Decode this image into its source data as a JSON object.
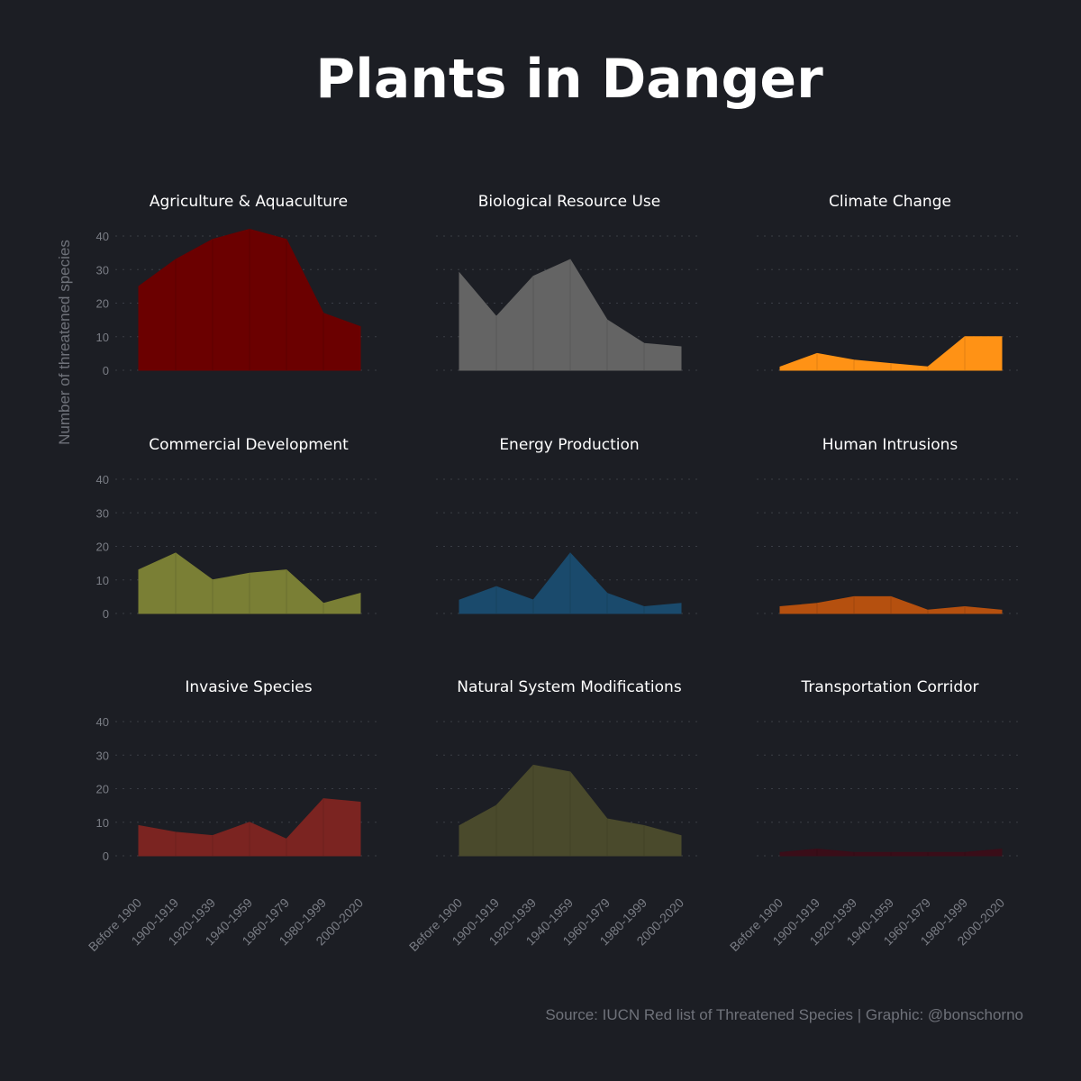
{
  "title": "Plants in Danger",
  "source": "Source: IUCN Red list of Threatened Species | Graphic: @bonschorno",
  "chart_data": {
    "type": "area",
    "ylabel": "Number of threatened species",
    "ylim": [
      0,
      40
    ],
    "yticks": [
      0,
      10,
      20,
      30,
      40
    ],
    "grid": true,
    "categories": [
      "Before 1900",
      "1900-1919",
      "1920-1939",
      "1940-1959",
      "1960-1979",
      "1980-1999",
      "2000-2020"
    ],
    "panels": [
      {
        "name": "Agriculture & Aquaculture",
        "color": "#6b0000",
        "values": [
          25,
          33,
          39,
          42,
          39,
          17,
          13
        ]
      },
      {
        "name": "Biological Resource Use",
        "color": "#646464",
        "values": [
          29,
          16,
          28,
          33,
          15,
          8,
          7
        ]
      },
      {
        "name": "Climate Change",
        "color": "#ff9215",
        "values": [
          1,
          5,
          3,
          2,
          1,
          10,
          10
        ]
      },
      {
        "name": "Commercial Development",
        "color": "#7a7f35",
        "values": [
          13,
          18,
          10,
          12,
          13,
          3,
          6
        ]
      },
      {
        "name": "Energy Production",
        "color": "#1a4a6c",
        "values": [
          4,
          8,
          4,
          18,
          6,
          2,
          3
        ]
      },
      {
        "name": "Human Intrusions",
        "color": "#b5500f",
        "values": [
          2,
          3,
          5,
          5,
          1,
          2,
          1
        ]
      },
      {
        "name": "Invasive Species",
        "color": "#7b2421",
        "values": [
          9,
          7,
          6,
          10,
          5,
          17,
          16
        ]
      },
      {
        "name": "Natural System Modifications",
        "color": "#4a4a2c",
        "values": [
          9,
          15,
          27,
          25,
          11,
          9,
          6
        ]
      },
      {
        "name": "Transportation Corridor",
        "color": "#3a0d18",
        "values": [
          1,
          2,
          1,
          1,
          1,
          1,
          2
        ]
      }
    ]
  }
}
